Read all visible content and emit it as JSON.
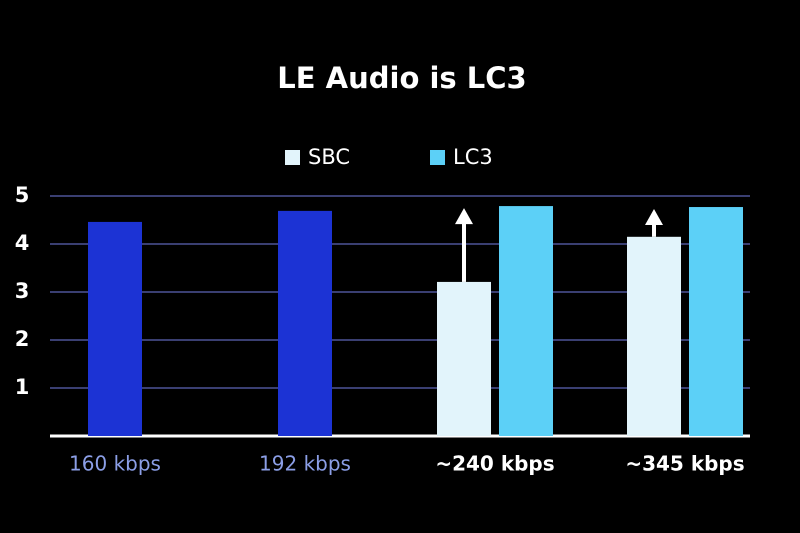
{
  "chart_data": {
    "type": "bar",
    "title": "LE Audio is LC3",
    "categories": [
      "160 kbps",
      "192 kbps",
      "~240 kbps",
      "~345 kbps"
    ],
    "category_colors": [
      "#8b9ee6",
      "#8b9ee6",
      "#ffffff",
      "#ffffff"
    ],
    "series": [
      {
        "name": "SBC",
        "color": "#e2f4fb",
        "values": [
          null,
          null,
          3.21,
          4.15
        ]
      },
      {
        "name": "LC3",
        "color": "#5cd0f7",
        "point_colors": [
          "#1c33d4",
          "#1c33d4",
          "#5cd0f7",
          "#5cd0f7"
        ],
        "values": [
          4.46,
          4.69,
          4.79,
          4.77
        ]
      }
    ],
    "ylim": [
      0,
      5
    ],
    "yticks": [
      1,
      2,
      3,
      4,
      5
    ],
    "grid": true
  }
}
